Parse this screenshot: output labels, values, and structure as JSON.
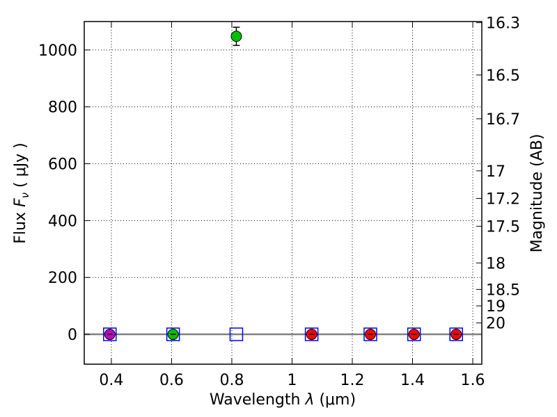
{
  "chart_data": {
    "type": "scatter",
    "title": "",
    "xlabel": "Wavelength",
    "xlabel_symbol": "λ",
    "xlabel_unit": "(μm)",
    "ylabel": "Flux",
    "ylabel_symbol": "F",
    "ylabel_subscript": "ν",
    "ylabel_unit": "( μJy )",
    "y2label": "Magnitude (AB)",
    "xlim": [
      0.31,
      1.63
    ],
    "ylim": [
      -105,
      1100
    ],
    "grid": true,
    "x_ticks": [
      0.4,
      0.6,
      0.8,
      1.0,
      1.2,
      1.4,
      1.6
    ],
    "x_tick_labels": [
      "0.4",
      "0.6",
      "0.8",
      "1",
      "1.2",
      "1.4",
      "1.6"
    ],
    "y_ticks": [
      0,
      200,
      400,
      600,
      800,
      1000
    ],
    "y_tick_labels": [
      "0",
      "200",
      "400",
      "600",
      "800",
      "1000"
    ],
    "y2_tick_labels": [
      "16.3",
      "16.5",
      "16.7",
      "17",
      "17.2",
      "17.5",
      "18",
      "18.5",
      "19",
      "20"
    ],
    "y2_tick_flux": [
      1096,
      912,
      758,
      575,
      478,
      380,
      251,
      158,
      100,
      40
    ],
    "baseline_y": 0,
    "circle_points": [
      {
        "x": 0.395,
        "y": 0,
        "err": 5,
        "color": "#bf00bf"
      },
      {
        "x": 0.605,
        "y": 0,
        "err": 5,
        "color": "#00bf00"
      },
      {
        "x": 0.815,
        "y": 1048,
        "err": 32,
        "color": "#00bf00"
      },
      {
        "x": 1.065,
        "y": 0,
        "err": 5,
        "color": "#ff0000"
      },
      {
        "x": 1.26,
        "y": 0,
        "err": 5,
        "color": "#ff0000"
      },
      {
        "x": 1.405,
        "y": 0,
        "err": 5,
        "color": "#ff0000"
      },
      {
        "x": 1.545,
        "y": 0,
        "err": 5,
        "color": "#ff0000"
      }
    ],
    "square_points": [
      {
        "x": 0.395,
        "y": 0
      },
      {
        "x": 0.605,
        "y": 0
      },
      {
        "x": 0.815,
        "y": 0
      },
      {
        "x": 1.065,
        "y": 0
      },
      {
        "x": 1.26,
        "y": 0
      },
      {
        "x": 1.405,
        "y": 0
      },
      {
        "x": 1.545,
        "y": 0
      }
    ],
    "colors": {
      "square_edge": "#0000ff",
      "baseline": "#808080",
      "grid": "#000000",
      "errorbar": "#000000"
    }
  }
}
